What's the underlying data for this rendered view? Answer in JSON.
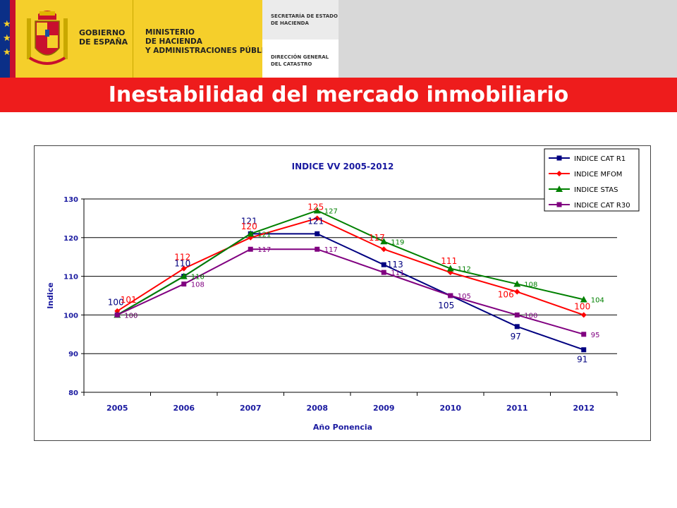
{
  "header": {
    "gov_line1": "GOBIERNO",
    "gov_line2": "DE ESPAÑA",
    "min_line1": "MINISTERIO",
    "min_line2": "DE HACIENDA",
    "min_line3": "Y ADMINISTRACIONES PÚBLICAS",
    "sec_line1": "SECRETARÍA DE ESTADO",
    "sec_line2": "DE HACIENDA",
    "dir_line1": "DIRECCIÓN GENERAL",
    "dir_line2": "DEL CATASTRO",
    "colors": {
      "yellow": "#f5cf2b",
      "blue": "#0b2f87",
      "red": "#c8102e"
    }
  },
  "slide_title": "Inestabilidad del mercado inmobiliario",
  "colors": {
    "title_bar": "#ee1c1c"
  },
  "chart_data": {
    "type": "line",
    "title": "INDICE VV 2005-2012",
    "xlabel": "Año Ponencia",
    "ylabel": "Indice",
    "ylim": [
      80,
      130
    ],
    "yticks": [
      80,
      90,
      100,
      110,
      120,
      130
    ],
    "grid": true,
    "legend_position": "top-right",
    "categories": [
      "2005",
      "2006",
      "2007",
      "2008",
      "2009",
      "2010",
      "2011",
      "2012"
    ],
    "series": [
      {
        "name": "INDICE CAT R1",
        "color": "#000080",
        "marker": "square",
        "values": [
          100,
          110,
          121,
          121,
          113,
          105,
          97,
          91
        ],
        "labels": [
          "100",
          "110",
          "121",
          "121",
          "113",
          "105",
          "97",
          "91"
        ]
      },
      {
        "name": "INDICE MFOM",
        "color": "#ff0000",
        "marker": "diamond",
        "values": [
          101,
          112,
          120,
          125,
          117,
          111,
          106,
          100
        ],
        "labels": [
          "101",
          "112",
          "120",
          "125",
          "117",
          "111",
          "106",
          "100"
        ]
      },
      {
        "name": "INDICE STAS",
        "color": "#008000",
        "marker": "triangle",
        "values": [
          100,
          110,
          121,
          127,
          119,
          112,
          108,
          104
        ],
        "labels": [
          "100",
          "110",
          "121",
          "127",
          "119",
          "112",
          "108",
          "104"
        ]
      },
      {
        "name": "INDICE CAT R30",
        "color": "#800080",
        "marker": "square",
        "values": [
          100,
          108,
          117,
          117,
          111,
          105,
          100,
          95
        ],
        "labels": [
          "100",
          "108",
          "117",
          "117",
          "111",
          "105",
          "100",
          "95"
        ]
      }
    ]
  }
}
